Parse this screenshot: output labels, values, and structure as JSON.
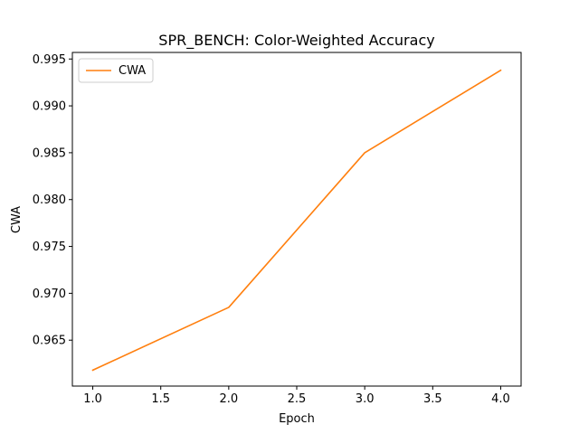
{
  "chart_data": {
    "type": "line",
    "title": "SPR_BENCH: Color-Weighted Accuracy",
    "xlabel": "Epoch",
    "ylabel": "CWA",
    "xlim": [
      0.85,
      4.15
    ],
    "ylim": [
      0.9601,
      0.9957
    ],
    "x_ticks": [
      1.0,
      1.5,
      2.0,
      2.5,
      3.0,
      3.5,
      4.0
    ],
    "x_tick_labels": [
      "1.0",
      "1.5",
      "2.0",
      "2.5",
      "3.0",
      "3.5",
      "4.0"
    ],
    "y_ticks": [
      0.965,
      0.97,
      0.975,
      0.98,
      0.985,
      0.99,
      0.995
    ],
    "y_tick_labels": [
      "0.965",
      "0.970",
      "0.975",
      "0.980",
      "0.985",
      "0.990",
      "0.995"
    ],
    "grid": false,
    "legend_position": "top-left",
    "series": [
      {
        "name": "CWA",
        "color": "#ff7f0e",
        "x": [
          1,
          2,
          3,
          4
        ],
        "y": [
          0.9618,
          0.9685,
          0.985,
          0.9938
        ]
      }
    ]
  }
}
